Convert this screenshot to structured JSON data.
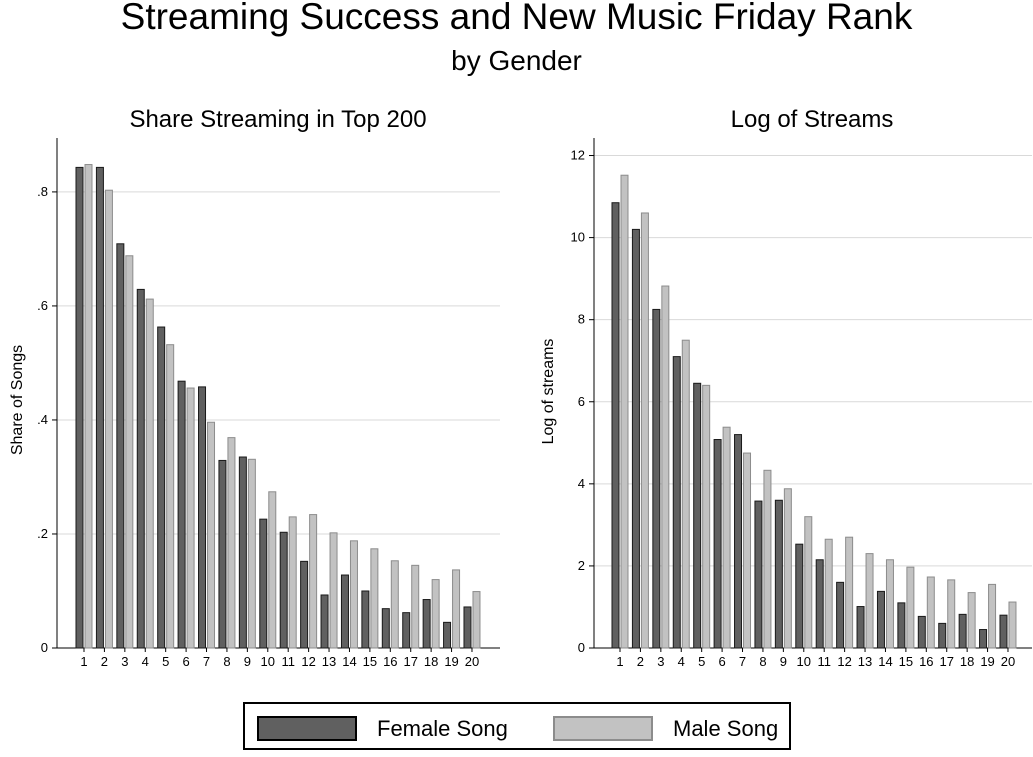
{
  "title": "Streaming Success and New Music Friday Rank",
  "subtitle": "by Gender",
  "colors": {
    "female": "#606060",
    "male": "#c2c2c2",
    "grid": "#d9d9d9",
    "bar_edge": "#1a1a1a",
    "male_edge": "#8c8c8c"
  },
  "legend": {
    "position": "bottom-center",
    "items": [
      {
        "label": "Female Song",
        "color": "#606060"
      },
      {
        "label": "Male Song",
        "color": "#c2c2c2"
      }
    ]
  },
  "chart_data": [
    {
      "type": "bar",
      "title": "Share Streaming in Top 200",
      "xlabel": "",
      "ylabel": "Share of Songs",
      "categories": [
        "1",
        "2",
        "3",
        "4",
        "5",
        "6",
        "7",
        "8",
        "9",
        "10",
        "11",
        "12",
        "13",
        "14",
        "15",
        "16",
        "17",
        "18",
        "19",
        "20"
      ],
      "series": [
        {
          "name": "Female Song",
          "values": [
            0.843,
            0.843,
            0.709,
            0.629,
            0.563,
            0.468,
            0.458,
            0.329,
            0.335,
            0.226,
            0.203,
            0.152,
            0.093,
            0.128,
            0.1,
            0.069,
            0.062,
            0.085,
            0.045,
            0.072
          ]
        },
        {
          "name": "Male Song",
          "values": [
            0.848,
            0.803,
            0.688,
            0.612,
            0.532,
            0.456,
            0.396,
            0.369,
            0.331,
            0.274,
            0.23,
            0.234,
            0.202,
            0.188,
            0.174,
            0.153,
            0.145,
            0.12,
            0.137,
            0.099
          ]
        }
      ],
      "ylim": [
        0,
        0.87
      ],
      "yticks": [
        0,
        0.2,
        0.4,
        0.6,
        0.8
      ],
      "ytick_labels": [
        "0",
        ".2",
        ".4",
        ".6",
        ".8"
      ],
      "grid": true
    },
    {
      "type": "bar",
      "title": "Log of Streams",
      "xlabel": "",
      "ylabel": "Log of streams",
      "categories": [
        "1",
        "2",
        "3",
        "4",
        "5",
        "6",
        "7",
        "8",
        "9",
        "10",
        "11",
        "12",
        "13",
        "14",
        "15",
        "16",
        "17",
        "18",
        "19",
        "20"
      ],
      "series": [
        {
          "name": "Female Song",
          "values": [
            10.85,
            10.2,
            8.25,
            7.1,
            6.45,
            5.08,
            5.2,
            3.58,
            3.6,
            2.53,
            2.15,
            1.6,
            1.01,
            1.38,
            1.1,
            0.77,
            0.6,
            0.82,
            0.45,
            0.8
          ]
        },
        {
          "name": "Male Song",
          "values": [
            11.52,
            10.6,
            8.82,
            7.5,
            6.4,
            5.38,
            4.75,
            4.33,
            3.88,
            3.2,
            2.65,
            2.7,
            2.3,
            2.15,
            1.97,
            1.73,
            1.66,
            1.35,
            1.55,
            1.12
          ]
        }
      ],
      "ylim": [
        0,
        12.5
      ],
      "yticks": [
        0,
        2,
        4,
        6,
        8,
        10,
        12
      ],
      "ytick_labels": [
        "0",
        "2",
        "4",
        "6",
        "8",
        "10",
        "12"
      ],
      "grid": true
    }
  ]
}
